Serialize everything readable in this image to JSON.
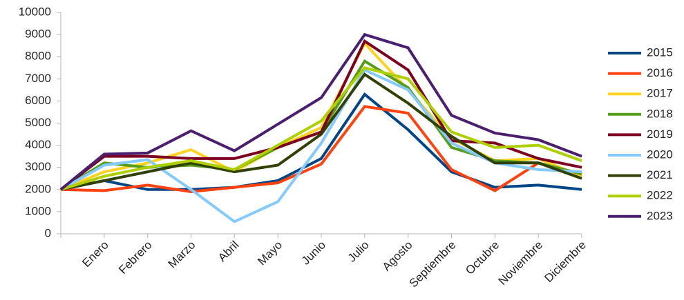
{
  "chart_data": {
    "type": "line",
    "categories": [
      null,
      "Enero",
      "Febrero",
      "Marzo",
      "Abril",
      "Mayo",
      "Junio",
      "Julio",
      "Agosto",
      "Septiembre",
      "Octubre",
      "Noviembre",
      "Diciembre"
    ],
    "ylim": [
      0,
      10000
    ],
    "yticks": [
      0,
      1000,
      2000,
      3000,
      4000,
      5000,
      6000,
      7000,
      8000,
      9000,
      10000
    ],
    "grid": false,
    "legend": "right",
    "series": [
      {
        "name": "2015",
        "color": "#004586",
        "values": [
          2000,
          2400,
          2000,
          2000,
          2100,
          2400,
          3400,
          6300,
          4700,
          2800,
          2100,
          2200,
          2000
        ]
      },
      {
        "name": "2016",
        "color": "#ff420e",
        "values": [
          2000,
          1950,
          2200,
          1900,
          2100,
          2300,
          3150,
          5750,
          5450,
          2900,
          1950,
          3200,
          2700
        ]
      },
      {
        "name": "2017",
        "color": "#ffd320",
        "values": [
          2000,
          2800,
          3200,
          3800,
          2800,
          3900,
          4800,
          8600,
          6500,
          4300,
          3300,
          3400,
          2600
        ]
      },
      {
        "name": "2018",
        "color": "#579d1c",
        "values": [
          2000,
          3200,
          3000,
          3100,
          2900,
          3900,
          4600,
          7800,
          6600,
          3900,
          3300,
          3200,
          2700
        ]
      },
      {
        "name": "2019",
        "color": "#7e0021",
        "values": [
          2000,
          3500,
          3500,
          3400,
          3400,
          3900,
          4600,
          8700,
          7400,
          4200,
          4100,
          3400,
          3000
        ]
      },
      {
        "name": "2020",
        "color": "#83caff",
        "values": [
          2000,
          3100,
          3350,
          2000,
          550,
          1450,
          4100,
          7400,
          6500,
          4100,
          3200,
          2900,
          2800
        ]
      },
      {
        "name": "2021",
        "color": "#314004",
        "values": [
          2000,
          2400,
          2800,
          3200,
          2800,
          3100,
          4500,
          7200,
          5900,
          4400,
          3200,
          3200,
          2500
        ]
      },
      {
        "name": "2022",
        "color": "#aecf00",
        "values": [
          2000,
          2600,
          3000,
          3300,
          2900,
          4000,
          5100,
          7500,
          7000,
          4600,
          3900,
          4000,
          3300
        ]
      },
      {
        "name": "2023",
        "color": "#4b1f6f",
        "values": [
          2000,
          3600,
          3650,
          4650,
          3750,
          4950,
          6150,
          9000,
          8400,
          5350,
          4550,
          4250,
          3500
        ]
      }
    ]
  }
}
